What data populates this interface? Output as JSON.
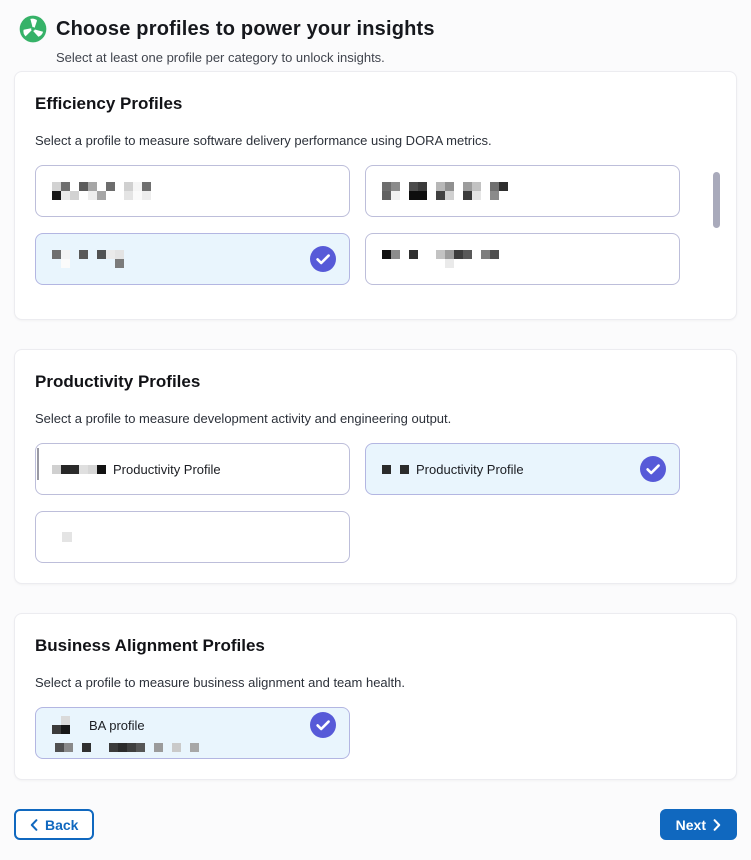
{
  "header": {
    "title": "Choose profiles to power your insights",
    "subtitle": "Select at least one profile per category to unlock insights."
  },
  "colors": {
    "accent_blue": "#1068bf",
    "logo_green": "#36b268",
    "selected_card_bg": "#e9f5fd",
    "selected_card_border": "#b3b6e2",
    "unselected_card_border": "#bdbeda",
    "check_badge": "#575ad8",
    "scrollbar_thumb": "#a9aabb"
  },
  "sections": {
    "efficiency": {
      "title": "Efficiency Profiles",
      "description": "Select a profile to measure software delivery performance using DORA metrics.",
      "cards": {
        "card1": {
          "state": "unselected",
          "mosaic": {
            "cell": 9,
            "rows": [
              [
                "#d2d2d2",
                "#6f6f6f",
                "",
                "#5c5c5c",
                "#a6a6a6",
                "",
                "#6d6d6d",
                "",
                "#d0d0d0",
                "#f5f5f5",
                "#6f6f6f"
              ],
              [
                "#161616",
                "#e9e9e9",
                "#d2d2d2",
                "",
                "#eeeeee",
                "#a6a6a6",
                "",
                "",
                "#e4e4e4",
                "#fafafa",
                "#ededed"
              ]
            ]
          }
        },
        "card2": {
          "state": "unselected",
          "mosaic": {
            "cell": 9,
            "rows": [
              [
                "#6d6d6d",
                "#8b8b8b",
                "",
                "#4c4c4c",
                "#3b3b3b",
                "",
                "#b7b7b7",
                "#909090",
                "",
                "#9c9c9c",
                "#c2c2c2",
                "",
                "#707070",
                "#2e2e2e"
              ],
              [
                "#606060",
                "#f0f0f0",
                "",
                "#0e0e0e",
                "#0e0e0e",
                "",
                "#404040",
                "#d0d0d0",
                "",
                "#3b3b3b",
                "#e6e6e6",
                "",
                "#8b8b8b",
                ""
              ]
            ]
          }
        },
        "card3": {
          "state": "selected",
          "mosaic": {
            "cell": 9,
            "rows": [
              [
                "#6f6f6f",
                "#f4f4f4",
                "",
                "#595959",
                "",
                "#525252",
                "#eaeaea",
                "#e3e3e3"
              ],
              [
                "",
                "#fbfbfb",
                "",
                "",
                "",
                "",
                "",
                "#7b7b7b"
              ]
            ]
          }
        },
        "card4": {
          "state": "unselected",
          "mosaic": {
            "cell": 9,
            "rows": [
              [
                "#111111",
                "#8c8c8c",
                "",
                "#303030",
                "",
                "",
                "#c3c3c3",
                "#9d9d9d",
                "#3d3d3d",
                "#595959",
                "",
                "#7e7e7e",
                "#505050"
              ],
              [
                "",
                "",
                "",
                "",
                "",
                "",
                "",
                "#eaeaea",
                "",
                "",
                "",
                "",
                ""
              ]
            ]
          }
        }
      }
    },
    "productivity": {
      "title": "Productivity Profiles",
      "description": "Select a profile to measure development activity and engineering output.",
      "cards": {
        "card1": {
          "state": "unselected",
          "label": "Productivity Profile",
          "prefix_mosaic": {
            "cell": 9,
            "rows": [
              [
                "#d0d0d0",
                "#262626",
                "#2b2b2b",
                "#dfdfdf",
                "#d6d6d6",
                "#121212"
              ]
            ]
          }
        },
        "card2": {
          "state": "selected",
          "label": "Productivity Profile",
          "prefix_mosaic": {
            "cell": 9,
            "rows": [
              [
                "#2b2b2b",
                "",
                "#2b2b2b"
              ]
            ]
          }
        },
        "card3": {
          "state": "unselected",
          "mosaic": {
            "cell": 10,
            "rows": [
              [
                "#e4e4e4"
              ]
            ]
          }
        }
      }
    },
    "business": {
      "title": "Business Alignment Profiles",
      "description": "Select a profile to measure business alignment and team health.",
      "cards": {
        "card1": {
          "state": "selected",
          "label": "BA profile",
          "prefix_mosaic": {
            "cell": 9,
            "rows": [
              [
                "",
                "#dadada",
                ""
              ],
              [
                "#3b3b3b",
                "#171717",
                ""
              ]
            ]
          },
          "subtitle_mosaic": {
            "cell": 9,
            "rows": [
              [
                "#505050",
                "#898989",
                "",
                "#303030",
                "",
                "",
                "#3b3b3b",
                "#2b2b2b",
                "#3f3f3f",
                "#565656",
                "",
                "#9b9b9b",
                "",
                "#cacaca",
                "",
                "#a7a7a7"
              ]
            ]
          }
        }
      }
    }
  },
  "footer": {
    "back_label": "Back",
    "next_label": "Next"
  }
}
